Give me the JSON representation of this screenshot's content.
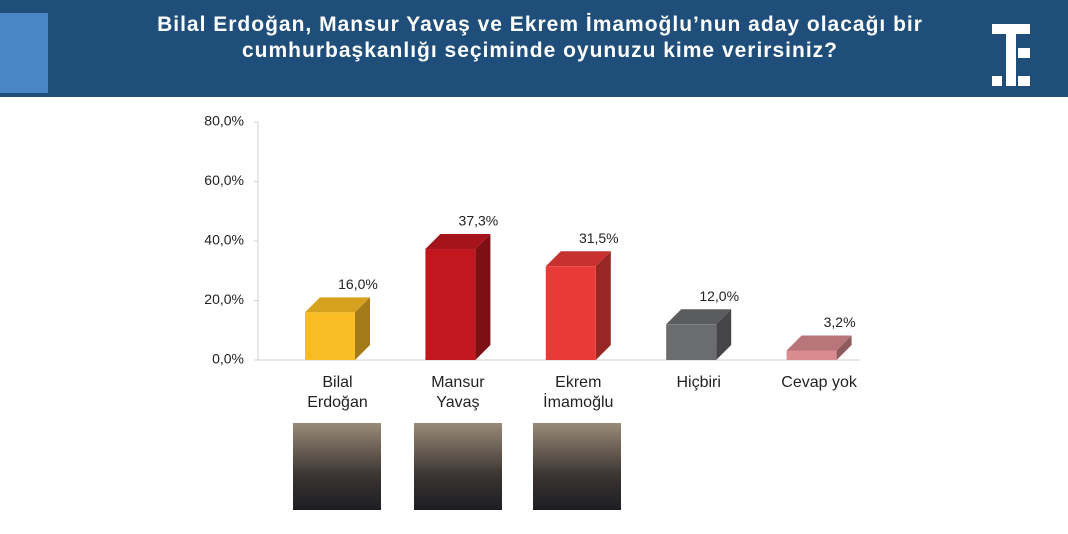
{
  "chart_data": {
    "type": "bar3d",
    "title": "Bilal Erdoğan, Mansur Yavaş ve Ekrem İmamoğlu’nun aday olacağı bir cumhurbaşkanlığı seçiminde oyunuzu kime verirsiniz?",
    "categories": [
      "Bilal\nErdoğan",
      "Mansur\nYavaş",
      "Ekrem\nİmamoğlu",
      "Hiçbiri",
      "Cevap yok"
    ],
    "values": [
      16.0,
      37.3,
      31.5,
      12.0,
      3.2
    ],
    "value_labels": [
      "16,0%",
      "37,3%",
      "31,5%",
      "12,0%",
      "3,2%"
    ],
    "colors": [
      "#fbbd25",
      "#c1181f",
      "#ea3a38",
      "#6b6c6e",
      "#d98b8f"
    ],
    "ylim": [
      0,
      80
    ],
    "yticks": [
      {
        "value": 0,
        "label": "0,0%"
      },
      {
        "value": 20,
        "label": "20,0%"
      },
      {
        "value": 40,
        "label": "40,0%"
      },
      {
        "value": 60,
        "label": "60,0%"
      },
      {
        "value": 80,
        "label": "80,0%"
      }
    ],
    "grid": false
  }
}
